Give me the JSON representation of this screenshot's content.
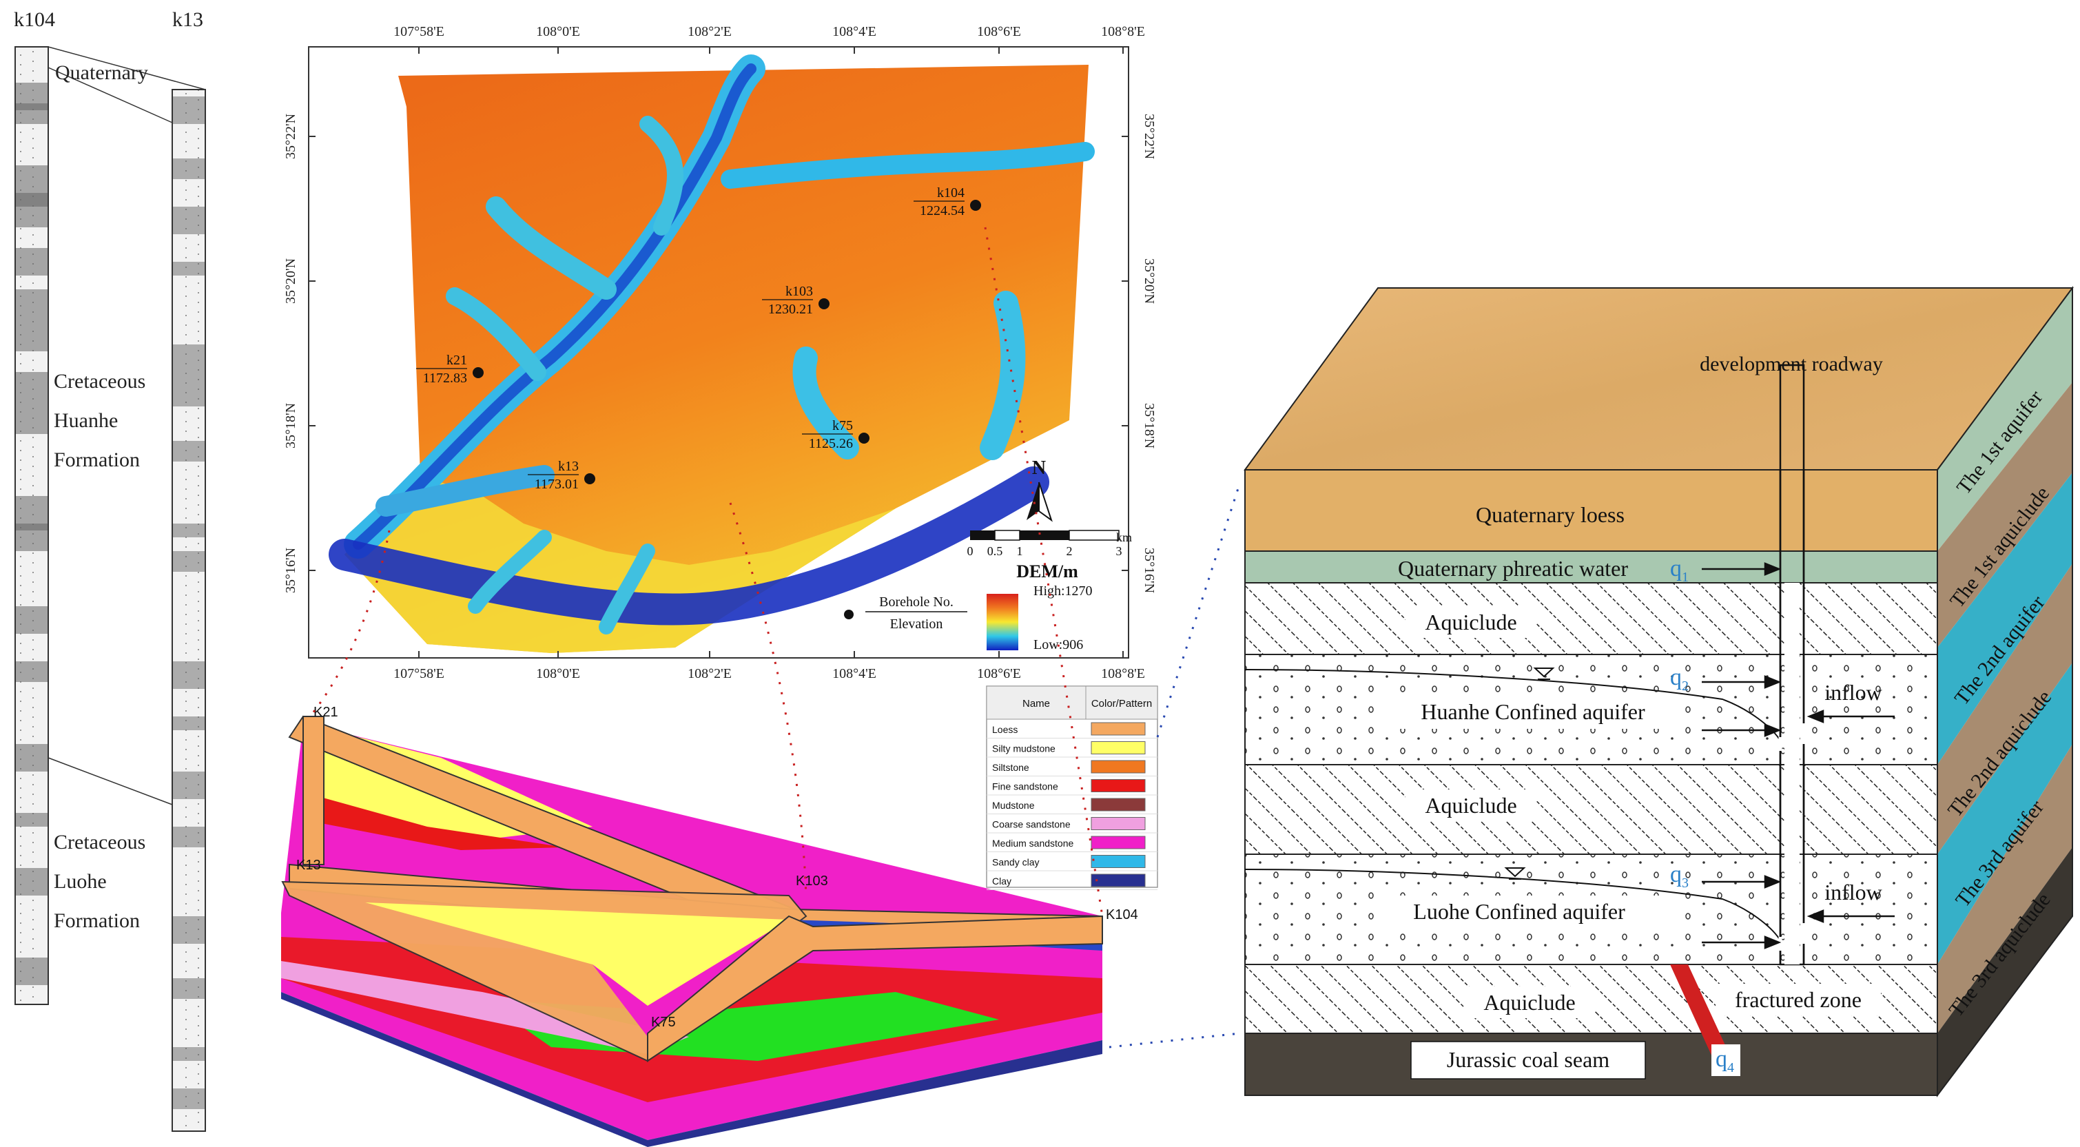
{
  "boreholes_column": {
    "left_name": "k104",
    "right_name": "k13",
    "formations": [
      "Quaternary",
      "Cretaceous Huanhe Formation",
      "Cretaceous Luohe Formation"
    ],
    "quaternary_label": "Quaternary",
    "huanhe_lines": [
      "Cretaceous",
      "Huanhe",
      "Formation"
    ],
    "luohe_lines": [
      "Cretaceous",
      "Luohe",
      "Formation"
    ]
  },
  "map": {
    "lon_ticks": [
      "107°58'E",
      "108°0'E",
      "108°2'E",
      "108°4'E",
      "108°6'E",
      "108°8'E"
    ],
    "lat_ticks": [
      "35°22'N",
      "35°20'N",
      "35°18'N",
      "35°16'N"
    ],
    "boreholes": [
      {
        "name": "k104",
        "elev": "1224.54"
      },
      {
        "name": "k103",
        "elev": "1230.21"
      },
      {
        "name": "k21",
        "elev": "1172.83"
      },
      {
        "name": "k75",
        "elev": "1125.26"
      },
      {
        "name": "k13",
        "elev": "1173.01"
      }
    ],
    "north": "N",
    "scale_ticks": [
      "0",
      "0.5",
      "1",
      "2",
      "3"
    ],
    "scale_unit": "km",
    "dem_title": "DEM/m",
    "dem_high": "High:1270",
    "dem_low": "Low:906",
    "legend_top": "Borehole No.",
    "legend_bottom": "Elevation"
  },
  "model3d": {
    "labels": [
      "K21",
      "K13",
      "K103",
      "K104",
      "K75"
    ],
    "legend_header": {
      "name": "Name",
      "pattern": "Color/Pattern"
    },
    "legend_items": [
      {
        "name": "Loess",
        "color": "#f4a860"
      },
      {
        "name": "Silty mudstone",
        "color": "#ffff66"
      },
      {
        "name": "Siltstone",
        "color": "#f07820"
      },
      {
        "name": "Fine sandstone",
        "color": "#e81818"
      },
      {
        "name": "Mudstone",
        "color": "#8b3a3a"
      },
      {
        "name": "Coarse sandstone",
        "color": "#f0a0e0"
      },
      {
        "name": "Medium sandstone",
        "color": "#f020c8"
      },
      {
        "name": "Sandy clay",
        "color": "#30b8e8"
      },
      {
        "name": "Clay",
        "color": "#283090"
      }
    ]
  },
  "block": {
    "top_label": "development roadway",
    "layers": [
      "Quaternary loess",
      "Quaternary phreatic water",
      "Aquiclude",
      "Huanhe Confined aquifer",
      "Aquiclude",
      "Luohe Confined aquifer",
      "Aquiclude",
      "Jurassic coal seam"
    ],
    "inflow": "inflow",
    "fractured": "fractured zone",
    "q": [
      "q",
      "q",
      "q",
      "q"
    ],
    "q_sub": [
      "1",
      "2",
      "3",
      "4"
    ],
    "side_labels": [
      "The 1st aquifer",
      "The 1st aquiclude",
      "The 2nd aquifer",
      "The 2nd aquiclude",
      "The 3rd aquifer",
      "The 3rd aquiclude"
    ]
  }
}
